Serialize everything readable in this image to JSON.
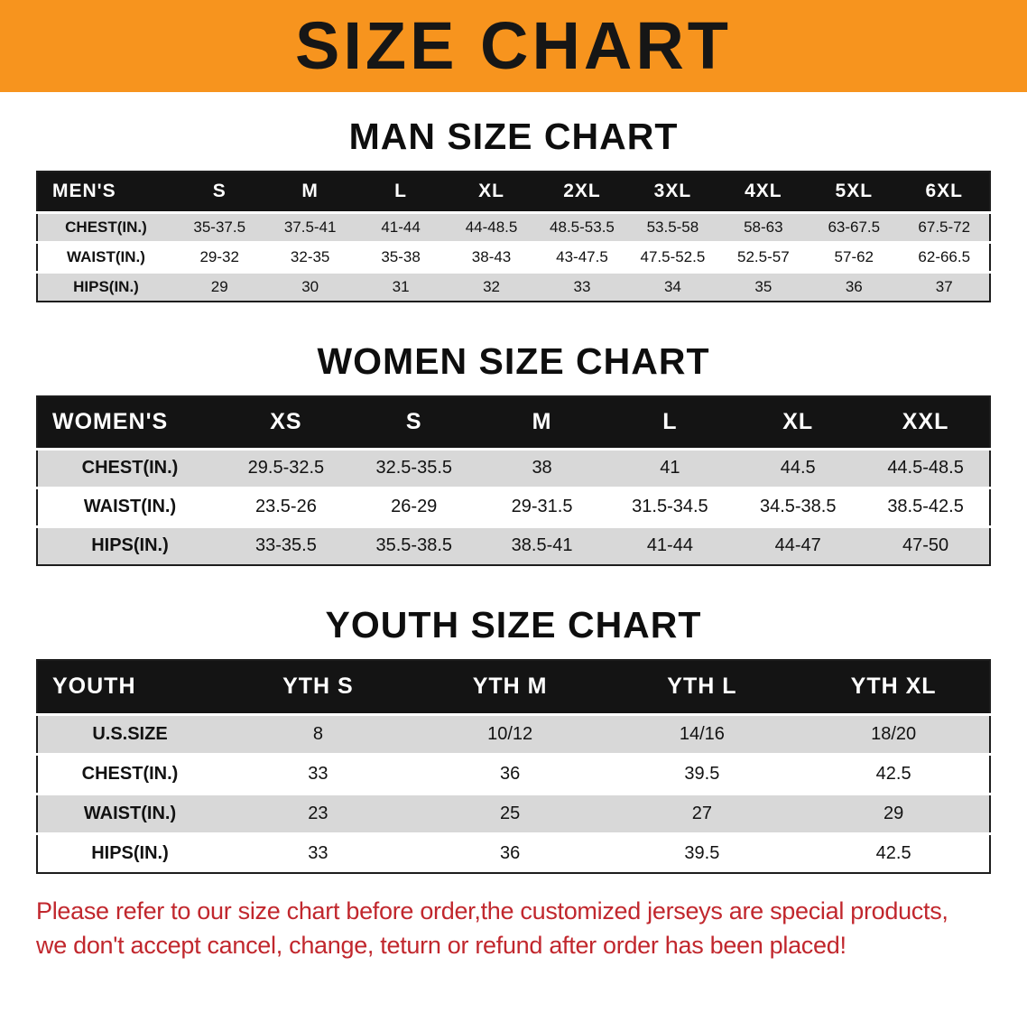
{
  "banner": {
    "title": "SIZE CHART"
  },
  "colors": {
    "banner-bg": "#f7941e",
    "header-bg": "#141414",
    "row-shade": "#d8d8d8",
    "disclaimer-red": "#c1272d"
  },
  "sections": [
    {
      "heading": "MAN SIZE CHART",
      "table": {
        "header": [
          "MEN'S",
          "S",
          "M",
          "L",
          "XL",
          "2XL",
          "3XL",
          "4XL",
          "5XL",
          "6XL"
        ],
        "rows": [
          {
            "label": "CHEST(IN.)",
            "values": [
              "35-37.5",
              "37.5-41",
              "41-44",
              "44-48.5",
              "48.5-53.5",
              "53.5-58",
              "58-63",
              "63-67.5",
              "67.5-72"
            ]
          },
          {
            "label": "WAIST(IN.)",
            "values": [
              "29-32",
              "32-35",
              "35-38",
              "38-43",
              "43-47.5",
              "47.5-52.5",
              "52.5-57",
              "57-62",
              "62-66.5"
            ]
          },
          {
            "label": "HIPS(IN.)",
            "values": [
              "29",
              "30",
              "31",
              "32",
              "33",
              "34",
              "35",
              "36",
              "37"
            ]
          }
        ]
      }
    },
    {
      "heading": "WOMEN SIZE CHART",
      "table": {
        "header": [
          "WOMEN'S",
          "XS",
          "S",
          "M",
          "L",
          "XL",
          "XXL"
        ],
        "rows": [
          {
            "label": "CHEST(IN.)",
            "values": [
              "29.5-32.5",
              "32.5-35.5",
              "38",
              "41",
              "44.5",
              "44.5-48.5"
            ]
          },
          {
            "label": "WAIST(IN.)",
            "values": [
              "23.5-26",
              "26-29",
              "29-31.5",
              "31.5-34.5",
              "34.5-38.5",
              "38.5-42.5"
            ]
          },
          {
            "label": "HIPS(IN.)",
            "values": [
              "33-35.5",
              "35.5-38.5",
              "38.5-41",
              "41-44",
              "44-47",
              "47-50"
            ]
          }
        ]
      }
    },
    {
      "heading": "YOUTH SIZE CHART",
      "table": {
        "header": [
          "YOUTH",
          "YTH S",
          "YTH M",
          "YTH L",
          "YTH XL"
        ],
        "rows": [
          {
            "label": "U.S.SIZE",
            "values": [
              "8",
              "10/12",
              "14/16",
              "18/20"
            ]
          },
          {
            "label": "CHEST(IN.)",
            "values": [
              "33",
              "36",
              "39.5",
              "42.5"
            ]
          },
          {
            "label": "WAIST(IN.)",
            "values": [
              "23",
              "25",
              "27",
              "29"
            ]
          },
          {
            "label": "HIPS(IN.)",
            "values": [
              "33",
              "36",
              "39.5",
              "42.5"
            ]
          }
        ]
      }
    }
  ],
  "disclaimer": {
    "line1": "Please refer to our size chart before order,the customized jerseys are special products,",
    "line2": "we don't accept cancel, change, teturn or refund after order has been placed!"
  }
}
